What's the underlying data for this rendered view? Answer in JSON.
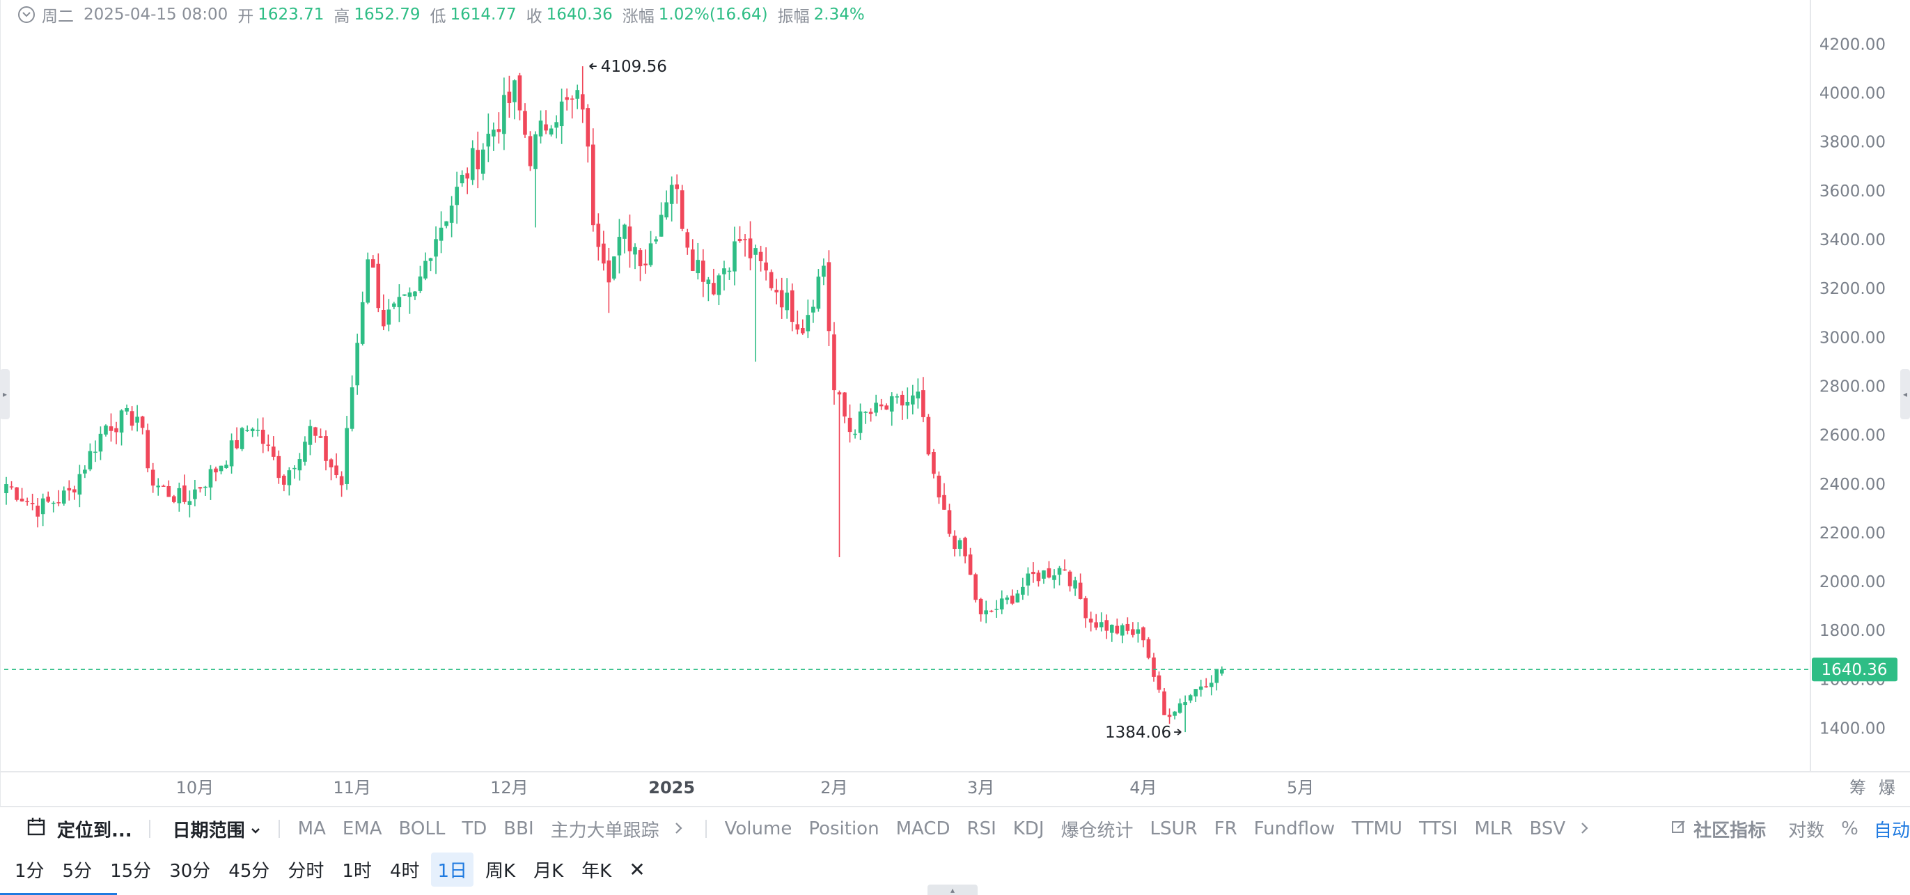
{
  "info_bar": {
    "weekday": "周二",
    "datetime": "2025-04-15 08:00",
    "open_label": "开",
    "open": "1623.71",
    "high_label": "高",
    "high": "1652.79",
    "low_label": "低",
    "low": "1614.77",
    "close_label": "收",
    "close": "1640.36",
    "change_label": "涨幅",
    "change": "1.02%(16.64)",
    "amplitude_label": "振幅",
    "amplitude": "2.34%"
  },
  "colors": {
    "up": "#2ebd85",
    "down": "#f0475a",
    "last_price_badge": "#2ebd85",
    "accent_blue": "#1f7ae0",
    "axis_text": "#7a808a",
    "grid_border": "#e6e8eb"
  },
  "chart_data": {
    "type": "candlestick",
    "interval": "1日",
    "ylim": [
      1300,
      4300
    ],
    "y_ticks": [
      "1400.00",
      "1600.00",
      "1800.00",
      "2000.00",
      "2200.00",
      "2400.00",
      "2600.00",
      "2800.00",
      "3000.00",
      "3200.00",
      "3400.00",
      "3600.00",
      "3800.00",
      "4000.00",
      "4200.00"
    ],
    "x_ticks": [
      {
        "label": "10月",
        "index": 36,
        "bold": false
      },
      {
        "label": "11月",
        "index": 66,
        "bold": false
      },
      {
        "label": "12月",
        "index": 96,
        "bold": false
      },
      {
        "label": "2025",
        "index": 127,
        "bold": true
      },
      {
        "label": "2月",
        "index": 158,
        "bold": false
      },
      {
        "label": "3月",
        "index": 186,
        "bold": false
      },
      {
        "label": "4月",
        "index": 217,
        "bold": false
      },
      {
        "label": "5月",
        "index": 247,
        "bold": false
      }
    ],
    "last_price": "1640.36",
    "max_label": "4109.56",
    "max_index": 110,
    "min_label": "1384.06",
    "min_index": 225,
    "total_slots": 280,
    "segments": [
      [
        0,
        2400
      ],
      [
        6,
        2300
      ],
      [
        12,
        2360
      ],
      [
        19,
        2640
      ],
      [
        25,
        2680
      ],
      [
        28,
        2400
      ],
      [
        34,
        2330
      ],
      [
        40,
        2460
      ],
      [
        47,
        2650
      ],
      [
        53,
        2420
      ],
      [
        58,
        2620
      ],
      [
        64,
        2400
      ],
      [
        66,
        2800
      ],
      [
        69,
        3350
      ],
      [
        72,
        3070
      ],
      [
        78,
        3160
      ],
      [
        81,
        3380
      ],
      [
        88,
        3680
      ],
      [
        97,
        4000
      ],
      [
        100,
        3750
      ],
      [
        104,
        3920
      ],
      [
        110,
        3970
      ],
      [
        112,
        3500
      ],
      [
        115,
        3280
      ],
      [
        118,
        3420
      ],
      [
        122,
        3320
      ],
      [
        127,
        3650
      ],
      [
        131,
        3330
      ],
      [
        135,
        3220
      ],
      [
        140,
        3400
      ],
      [
        147,
        3200
      ],
      [
        152,
        3050
      ],
      [
        156,
        3300
      ],
      [
        158,
        2780
      ],
      [
        161,
        2620
      ],
      [
        164,
        2680
      ],
      [
        174,
        2750
      ],
      [
        177,
        2400
      ],
      [
        180,
        2200
      ],
      [
        183,
        2100
      ],
      [
        186,
        1850
      ],
      [
        191,
        1920
      ],
      [
        196,
        2020
      ],
      [
        202,
        2060
      ],
      [
        207,
        1840
      ],
      [
        212,
        1800
      ],
      [
        217,
        1780
      ],
      [
        221,
        1450
      ],
      [
        225,
        1520
      ],
      [
        228,
        1580
      ],
      [
        232,
        1640.36
      ]
    ]
  },
  "axis_right_labels": {
    "chip": "筹",
    "burst": "爆"
  },
  "toolbar": {
    "locate_label": "定位到...",
    "date_range_label": "日期范围",
    "main_indicators": [
      "MA",
      "EMA",
      "BOLL",
      "TD",
      "BBI",
      "主力大单跟踪"
    ],
    "sub_indicators": [
      "Volume",
      "Position",
      "MACD",
      "RSI",
      "KDJ",
      "爆仓统计",
      "LSUR",
      "FR",
      "Fundflow",
      "TTMU",
      "TTSI",
      "MLR",
      "BSV"
    ],
    "community_label": "社区指标",
    "log_label": "对数",
    "percent_label": "%",
    "auto_label": "自动"
  },
  "intervals": {
    "items": [
      "1分",
      "5分",
      "15分",
      "30分",
      "45分",
      "分时",
      "1时",
      "4时",
      "1日",
      "周K",
      "月K",
      "年K"
    ],
    "active": "1日"
  }
}
